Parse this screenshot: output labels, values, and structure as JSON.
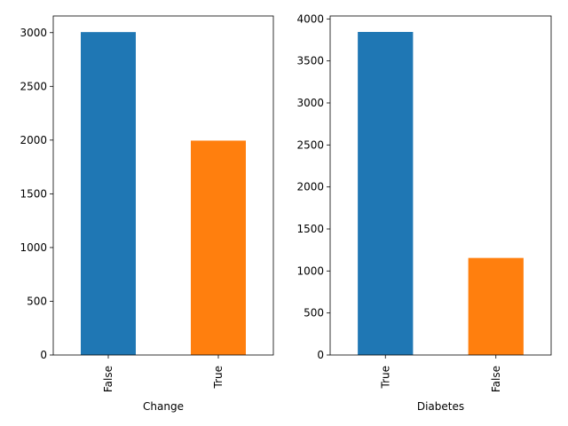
{
  "chart_data": [
    {
      "type": "bar",
      "xlabel": "Change",
      "ylabel": "",
      "categories": [
        "False",
        "True"
      ],
      "values": [
        3005,
        1995
      ],
      "colors": [
        "#1f77b4",
        "#ff7f0e"
      ],
      "ylim": [
        0,
        3155
      ],
      "yticks": [
        0,
        500,
        1000,
        1500,
        2000,
        2500,
        3000
      ],
      "grid": false
    },
    {
      "type": "bar",
      "xlabel": "Diabetes",
      "ylabel": "",
      "categories": [
        "True",
        "False"
      ],
      "values": [
        3845,
        1155
      ],
      "colors": [
        "#1f77b4",
        "#ff7f0e"
      ],
      "ylim": [
        0,
        4035
      ],
      "yticks": [
        0,
        500,
        1000,
        1500,
        2000,
        2500,
        3000,
        3500,
        4000
      ],
      "grid": false
    }
  ]
}
